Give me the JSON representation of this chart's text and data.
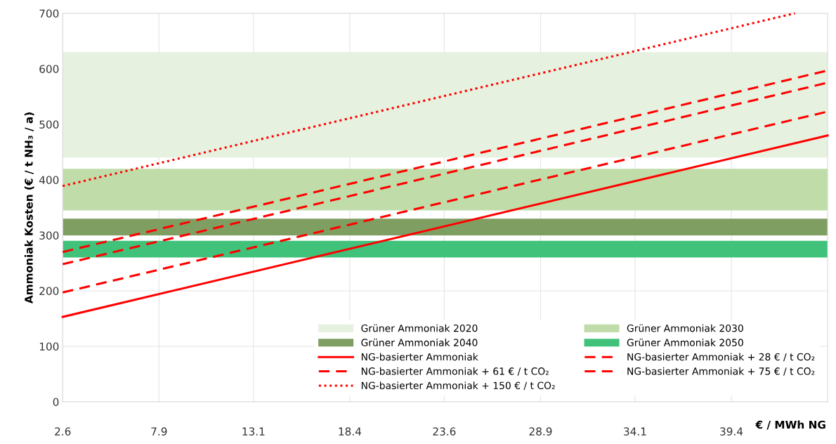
{
  "chart_data": {
    "type": "line",
    "ylabel": "Ammoniak Kosten (€ / t NH₃ / a)",
    "xlabel": "€ / MWh NG",
    "xlim": [
      2.6,
      44.7
    ],
    "xticks": [
      2.6,
      7.9,
      13.1,
      18.4,
      23.6,
      28.9,
      34.1,
      39.4
    ],
    "ylim": [
      0,
      700
    ],
    "yticks": [
      0,
      100,
      200,
      300,
      400,
      500,
      600,
      700
    ],
    "grid": true,
    "legend": "bottom right",
    "bands": [
      {
        "axis": "y",
        "from": 440,
        "to": 630,
        "label": "Grüner Ammoniak 2020",
        "color": "#e6f1df"
      },
      {
        "axis": "y",
        "from": 345,
        "to": 420,
        "label": "Grüner Ammoniak 2030",
        "color": "#c0dda9"
      },
      {
        "axis": "y",
        "from": 300,
        "to": 330,
        "label": "Grüner Ammoniak 2040",
        "color": "#7f9f62"
      },
      {
        "axis": "y",
        "from": 260,
        "to": 290,
        "label": "Grüner Ammoniak 2050",
        "color": "#40c27a"
      }
    ],
    "series": [
      {
        "name": "NG-basierter Ammoniak",
        "color": "#ff0000",
        "line_style": "solid",
        "x": [
          2.6,
          44.7
        ],
        "values": [
          153,
          480
        ]
      },
      {
        "name": "NG-basierter Ammoniak + 28 € / t CO₂",
        "color": "#ff0000",
        "line_style": "dashed",
        "x": [
          2.6,
          44.7
        ],
        "values": [
          197,
          523
        ]
      },
      {
        "name": "NG-basierter Ammoniak + 61 € / t CO₂",
        "color": "#ff0000",
        "line_style": "dashed",
        "x": [
          2.6,
          44.7
        ],
        "values": [
          248,
          575
        ]
      },
      {
        "name": "NG-basierter Ammoniak + 75 € / t CO₂",
        "color": "#ff0000",
        "line_style": "dashed",
        "x": [
          2.6,
          44.7
        ],
        "values": [
          270,
          597
        ]
      },
      {
        "name": "NG-basierter Ammoniak + 150 € / t CO₂",
        "color": "#ff0000",
        "line_style": "dotted",
        "x": [
          2.6,
          42.9
        ],
        "values": [
          389,
          700
        ]
      }
    ]
  }
}
